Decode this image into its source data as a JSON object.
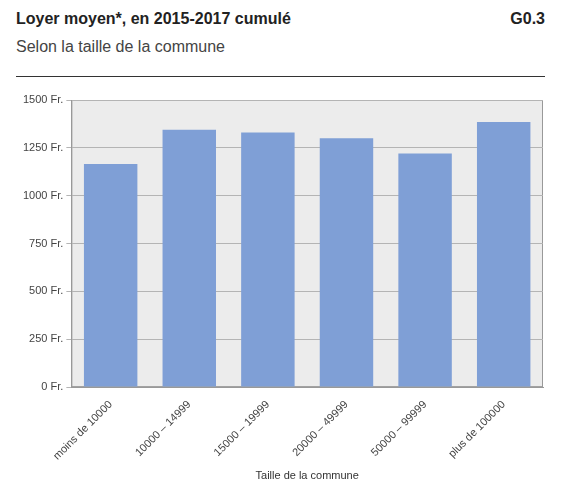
{
  "chart_data": {
    "type": "bar",
    "title": "Loyer moyen*, en 2015-2017 cumulé",
    "subtitle": "Selon la taille de la commune",
    "annotations": [
      "G0.3"
    ],
    "x_label": "Taille de la commune",
    "categories": [
      "moins de 10000",
      "10000 – 14999",
      "15000 – 19999",
      "20000 – 49999",
      "50000 – 99999",
      "plus de 100000"
    ],
    "values": [
      1165,
      1345,
      1330,
      1300,
      1220,
      1385
    ],
    "color": "#7f9fd6",
    "ylim": [
      0,
      1500
    ],
    "yticks": [
      {
        "value": 0,
        "label": "0 Fr."
      },
      {
        "value": 250,
        "label": "250 Fr."
      },
      {
        "value": 500,
        "label": "500 Fr."
      },
      {
        "value": 750,
        "label": "750 Fr."
      },
      {
        "value": 1000,
        "label": "1000 Fr."
      },
      {
        "value": 1250,
        "label": "1250 Fr."
      },
      {
        "value": 1500,
        "label": "1500 Fr."
      }
    ],
    "grid": true
  }
}
